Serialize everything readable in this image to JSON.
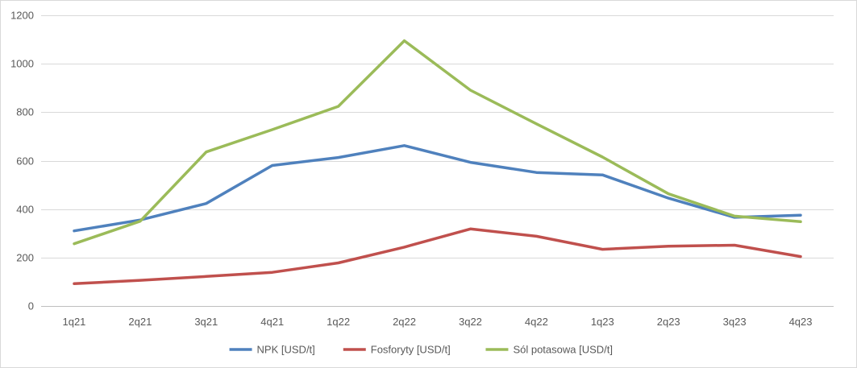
{
  "chart_data": {
    "type": "line",
    "title": "",
    "xlabel": "",
    "ylabel": "",
    "categories": [
      "1q21",
      "2q21",
      "3q21",
      "4q21",
      "1q22",
      "2q22",
      "3q22",
      "4q22",
      "1q23",
      "2q23",
      "3q23",
      "4q23"
    ],
    "ylim": [
      0,
      1200
    ],
    "yticks": [
      0,
      200,
      400,
      600,
      800,
      1000,
      1200
    ],
    "grid": true,
    "legend_position": "bottom",
    "series": [
      {
        "name": "NPK  [USD/t]",
        "color": "#4f81bd",
        "values": [
          310,
          355,
          423,
          580,
          613,
          662,
          593,
          551,
          541,
          445,
          366,
          375
        ]
      },
      {
        "name": "Fosforyty [USD/t]",
        "color": "#c0504d",
        "values": [
          92,
          106,
          122,
          139,
          178,
          243,
          318,
          288,
          234,
          247,
          251,
          204
        ]
      },
      {
        "name": "Sól potasowa [USD/t]",
        "color": "#9bbb59",
        "values": [
          257,
          350,
          636,
          728,
          824,
          1095,
          891,
          752,
          615,
          463,
          371,
          348
        ]
      }
    ]
  }
}
